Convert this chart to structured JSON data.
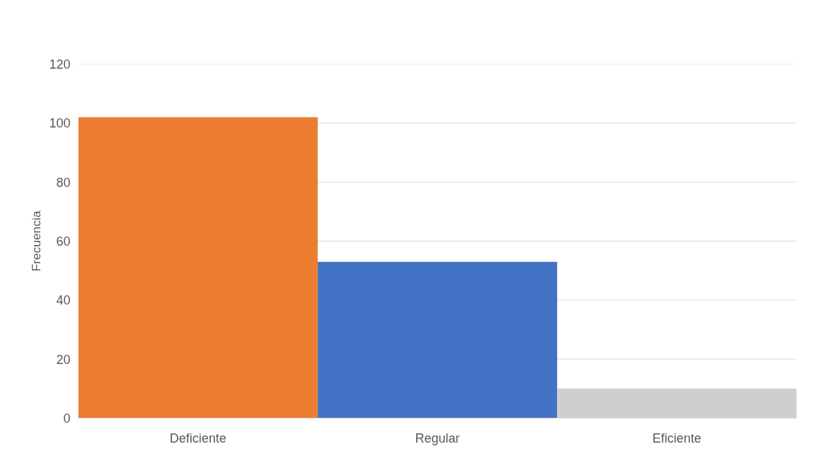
{
  "chart_data": {
    "type": "bar",
    "ylabel": "Frecuencia",
    "categories": [
      "Deficiente",
      "Regular",
      "Eficiente"
    ],
    "values": [
      102,
      53,
      10
    ],
    "colors": [
      "#ed7d31",
      "#4472c4",
      "#d0cece"
    ],
    "ylim": [
      0,
      120
    ],
    "yticks": [
      0,
      20,
      40,
      60,
      80,
      100,
      120
    ],
    "grid": "y"
  }
}
